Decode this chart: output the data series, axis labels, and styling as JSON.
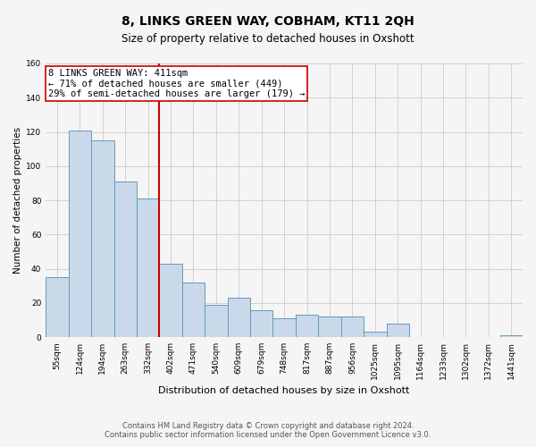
{
  "title": "8, LINKS GREEN WAY, COBHAM, KT11 2QH",
  "subtitle": "Size of property relative to detached houses in Oxshott",
  "xlabel": "Distribution of detached houses by size in Oxshott",
  "ylabel": "Number of detached properties",
  "bar_labels": [
    "55sqm",
    "124sqm",
    "194sqm",
    "263sqm",
    "332sqm",
    "402sqm",
    "471sqm",
    "540sqm",
    "609sqm",
    "679sqm",
    "748sqm",
    "817sqm",
    "887sqm",
    "956sqm",
    "1025sqm",
    "1095sqm",
    "1164sqm",
    "1233sqm",
    "1302sqm",
    "1372sqm",
    "1441sqm"
  ],
  "bar_values": [
    35,
    121,
    115,
    91,
    81,
    43,
    32,
    19,
    23,
    16,
    11,
    13,
    12,
    12,
    3,
    8,
    0,
    0,
    0,
    0,
    1
  ],
  "bar_color": "#c9d9ea",
  "bar_edge_color": "#6699bb",
  "reference_line_x": 4.5,
  "reference_line_color": "#cc0000",
  "annotation_text": "8 LINKS GREEN WAY: 411sqm\n← 71% of detached houses are smaller (449)\n29% of semi-detached houses are larger (179) →",
  "annotation_box_color": "#ffffff",
  "annotation_box_edge_color": "#cc0000",
  "ylim": [
    0,
    160
  ],
  "yticks": [
    0,
    20,
    40,
    60,
    80,
    100,
    120,
    140,
    160
  ],
  "footer_line1": "Contains HM Land Registry data © Crown copyright and database right 2024.",
  "footer_line2": "Contains public sector information licensed under the Open Government Licence v3.0.",
  "grid_color": "#cccccc",
  "background_color": "#f5f5f5",
  "title_fontsize": 10,
  "subtitle_fontsize": 8.5,
  "xlabel_fontsize": 8,
  "ylabel_fontsize": 7.5,
  "tick_fontsize": 6.5,
  "footer_fontsize": 6,
  "annotation_fontsize": 7.5
}
